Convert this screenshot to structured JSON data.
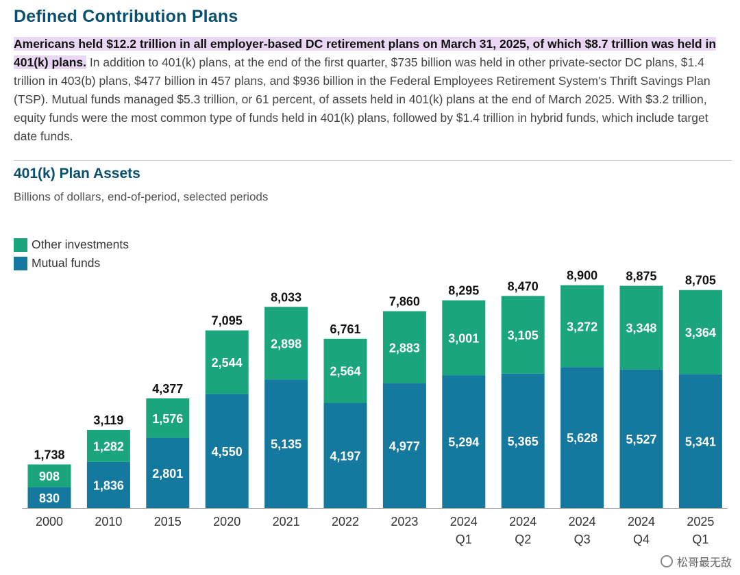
{
  "page": {
    "title": "Defined Contribution Plans",
    "intro_highlight": "Americans held $12.2 trillion in all employer-based DC retirement plans on March 31, 2025, of which $8.7 trillion was held in 401(k) plans.",
    "intro_rest": " In addition to 401(k) plans, at the end of the first quarter, $735 billion was held in other private-sector DC plans, $1.4 trillion in 403(b) plans, $477 billion in 457 plans, and $936 billion in the Federal Employees Retirement System's Thrift Savings Plan (TSP). Mutual funds managed $5.3 trillion, or 61 percent, of assets held in 401(k) plans at the end of March 2025. With $3.2 trillion, equity funds were the most common type of funds held in 401(k) plans, followed by $1.4 trillion in hybrid funds, which include target date funds."
  },
  "watermark": {
    "text": "松哥最无敌"
  },
  "chart_data": {
    "type": "bar",
    "stacked": true,
    "title": "401(k) Plan Assets",
    "subtitle": "Billions of dollars, end-of-period, selected periods",
    "categories": [
      "2000",
      "2010",
      "2015",
      "2020",
      "2021",
      "2022",
      "2023",
      "2024\nQ1",
      "2024\nQ2",
      "2024\nQ3",
      "2024\nQ4",
      "2025\nQ1"
    ],
    "category_display": [
      [
        "2000"
      ],
      [
        "2010"
      ],
      [
        "2015"
      ],
      [
        "2020"
      ],
      [
        "2021"
      ],
      [
        "2022"
      ],
      [
        "2023"
      ],
      [
        "2024",
        "Q1"
      ],
      [
        "2024",
        "Q2"
      ],
      [
        "2024",
        "Q3"
      ],
      [
        "2024",
        "Q4"
      ],
      [
        "2025",
        "Q1"
      ]
    ],
    "series": [
      {
        "name": "Mutual funds",
        "color": "#15789e",
        "values": [
          830,
          1836,
          2801,
          4550,
          5135,
          4197,
          4977,
          5294,
          5365,
          5628,
          5527,
          5341
        ],
        "labels": [
          "830",
          "1,836",
          "2,801",
          "4,550",
          "5,135",
          "4,197",
          "4,977",
          "5,294",
          "5,365",
          "5,628",
          "5,527",
          "5,341"
        ]
      },
      {
        "name": "Other investments",
        "color": "#1aa57d",
        "values": [
          908,
          1282,
          1576,
          2544,
          2898,
          2564,
          2883,
          3001,
          3105,
          3272,
          3348,
          3364
        ],
        "labels": [
          "908",
          "1,282",
          "1,576",
          "2,544",
          "2,898",
          "2,564",
          "2,883",
          "3,001",
          "3,105",
          "3,272",
          "3,348",
          "3,364"
        ]
      }
    ],
    "totals": [
      1738,
      3119,
      4377,
      7095,
      8033,
      6761,
      7860,
      8295,
      8470,
      8900,
      8875,
      8705
    ],
    "total_labels": [
      "1,738",
      "3,119",
      "4,377",
      "7,095",
      "8,033",
      "6,761",
      "7,860",
      "8,295",
      "8,470",
      "8,900",
      "8,875",
      "8,705"
    ],
    "legend": {
      "position": "top-left",
      "order": [
        "Other investments",
        "Mutual funds"
      ]
    },
    "grid": false,
    "ylim": [
      0,
      9000
    ]
  }
}
